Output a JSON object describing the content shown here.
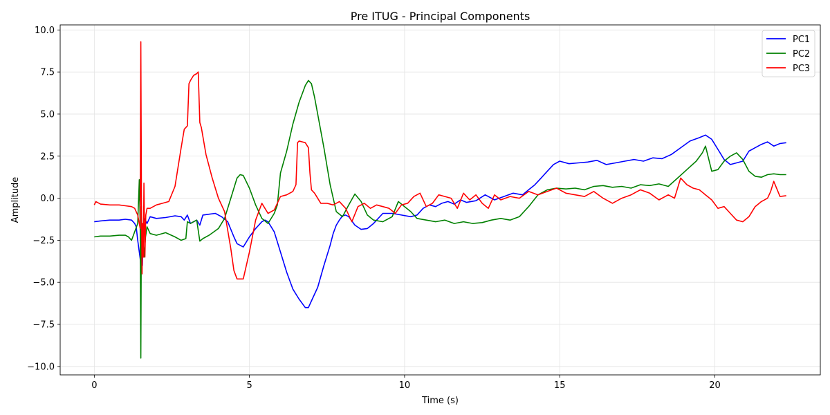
{
  "chart_data": {
    "type": "line",
    "title": "Pre ITUG - Principal Components",
    "xlabel": "Time (s)",
    "ylabel": "Amplitude",
    "xlim": [
      -1.1,
      23.4
    ],
    "ylim": [
      -10.5,
      10.3
    ],
    "xticks": [
      0,
      5,
      10,
      15,
      20
    ],
    "yticks": [
      -10.0,
      -7.5,
      -5.0,
      -2.5,
      0.0,
      2.5,
      5.0,
      7.5,
      10.0
    ],
    "xtick_labels": [
      "0",
      "5",
      "10",
      "15",
      "20"
    ],
    "ytick_labels": [
      "−10.0",
      "−7.5",
      "−5.0",
      "−2.5",
      "0.0",
      "2.5",
      "5.0",
      "7.5",
      "10.0"
    ],
    "grid": true,
    "legend_position": "top-right",
    "series": [
      {
        "name": "PC1",
        "color": "#0000ff",
        "x": [
          0,
          0.2,
          0.5,
          0.8,
          1.0,
          1.2,
          1.3,
          1.35,
          1.4,
          1.45,
          1.48,
          1.5,
          1.52,
          1.55,
          1.58,
          1.62,
          1.7,
          1.8,
          2.0,
          2.3,
          2.6,
          2.8,
          2.9,
          3.0,
          3.1,
          3.2,
          3.3,
          3.4,
          3.5,
          3.7,
          3.9,
          4.1,
          4.3,
          4.5,
          4.6,
          4.7,
          4.8,
          5.0,
          5.2,
          5.4,
          5.5,
          5.6,
          5.8,
          6.0,
          6.2,
          6.4,
          6.6,
          6.8,
          6.9,
          7.0,
          7.2,
          7.4,
          7.6,
          7.7,
          7.8,
          7.9,
          8.0,
          8.1,
          8.2,
          8.4,
          8.6,
          8.8,
          9.0,
          9.3,
          9.6,
          9.9,
          10.2,
          10.4,
          10.6,
          10.8,
          11.0,
          11.2,
          11.4,
          11.6,
          11.8,
          12.0,
          12.3,
          12.6,
          12.9,
          13.2,
          13.5,
          13.8,
          14.0,
          14.2,
          14.4,
          14.6,
          14.8,
          15.0,
          15.3,
          15.6,
          15.9,
          16.2,
          16.5,
          16.8,
          17.1,
          17.4,
          17.7,
          18.0,
          18.3,
          18.6,
          18.9,
          19.2,
          19.5,
          19.7,
          19.9,
          20.1,
          20.3,
          20.5,
          20.7,
          20.9,
          21.1,
          21.3,
          21.5,
          21.7,
          21.9,
          22.1,
          22.3
        ],
        "y": [
          -1.4,
          -1.35,
          -1.3,
          -1.3,
          -1.25,
          -1.3,
          -1.5,
          -1.7,
          -2.5,
          -3.2,
          -3.6,
          -4.2,
          -3.3,
          -4.0,
          -2.0,
          -1.2,
          -1.5,
          -1.1,
          -1.2,
          -1.15,
          -1.05,
          -1.1,
          -1.3,
          -1.0,
          -1.5,
          -1.4,
          -1.3,
          -1.6,
          -1.0,
          -0.95,
          -0.9,
          -1.1,
          -1.4,
          -2.3,
          -2.7,
          -2.8,
          -2.9,
          -2.3,
          -1.8,
          -1.4,
          -1.3,
          -1.4,
          -2.0,
          -3.2,
          -4.4,
          -5.4,
          -6.0,
          -6.5,
          -6.5,
          -6.1,
          -5.3,
          -4.0,
          -2.8,
          -2.1,
          -1.6,
          -1.3,
          -1.05,
          -1.0,
          -1.1,
          -1.6,
          -1.85,
          -1.8,
          -1.5,
          -0.9,
          -0.9,
          -1.0,
          -1.1,
          -1.0,
          -0.6,
          -0.4,
          -0.5,
          -0.3,
          -0.2,
          -0.35,
          -0.1,
          -0.25,
          -0.15,
          0.2,
          -0.1,
          0.1,
          0.3,
          0.2,
          0.5,
          0.8,
          1.2,
          1.6,
          2.0,
          2.2,
          2.05,
          2.1,
          2.15,
          2.25,
          2.0,
          2.1,
          2.2,
          2.3,
          2.2,
          2.4,
          2.35,
          2.6,
          3.0,
          3.4,
          3.6,
          3.75,
          3.5,
          2.9,
          2.3,
          2.0,
          2.1,
          2.2,
          2.8,
          3.0,
          3.2,
          3.35,
          3.1,
          3.25,
          3.3
        ]
      },
      {
        "name": "PC2",
        "color": "#008000",
        "x": [
          0,
          0.2,
          0.5,
          0.8,
          1.0,
          1.1,
          1.2,
          1.3,
          1.4,
          1.45,
          1.48,
          1.5,
          1.52,
          1.54,
          1.56,
          1.6,
          1.65,
          1.7,
          1.8,
          2.0,
          2.3,
          2.6,
          2.8,
          2.95,
          3.0,
          3.1,
          3.3,
          3.4,
          3.5,
          3.7,
          4.0,
          4.2,
          4.4,
          4.6,
          4.7,
          4.8,
          5.0,
          5.2,
          5.4,
          5.6,
          5.8,
          5.9,
          6.0,
          6.2,
          6.4,
          6.6,
          6.8,
          6.9,
          7.0,
          7.1,
          7.2,
          7.4,
          7.6,
          7.8,
          8.0,
          8.2,
          8.4,
          8.6,
          8.8,
          9.0,
          9.3,
          9.6,
          9.8,
          10.0,
          10.2,
          10.4,
          10.7,
          11.0,
          11.3,
          11.6,
          11.9,
          12.2,
          12.5,
          12.8,
          13.1,
          13.4,
          13.7,
          14.0,
          14.3,
          14.6,
          14.9,
          15.2,
          15.5,
          15.8,
          16.1,
          16.4,
          16.7,
          17.0,
          17.3,
          17.6,
          17.9,
          18.2,
          18.5,
          18.8,
          19.1,
          19.4,
          19.6,
          19.7,
          19.9,
          20.1,
          20.3,
          20.5,
          20.7,
          20.9,
          21.1,
          21.3,
          21.5,
          21.7,
          21.9,
          22.1,
          22.3
        ],
        "y": [
          -2.3,
          -2.25,
          -2.25,
          -2.2,
          -2.2,
          -2.3,
          -2.5,
          -2.0,
          -1.5,
          1.1,
          -1.7,
          -9.5,
          -0.5,
          -2.8,
          -1.9,
          -3.5,
          -2.3,
          -1.7,
          -2.1,
          -2.2,
          -2.05,
          -2.3,
          -2.5,
          -2.4,
          -1.4,
          -1.5,
          -1.3,
          -2.55,
          -2.4,
          -2.2,
          -1.8,
          -1.2,
          0.0,
          1.2,
          1.4,
          1.35,
          0.6,
          -0.4,
          -1.2,
          -1.5,
          -0.9,
          -0.4,
          1.5,
          2.8,
          4.4,
          5.7,
          6.7,
          7.0,
          6.8,
          6.0,
          5.0,
          3.0,
          0.8,
          -0.8,
          -1.1,
          -0.4,
          0.25,
          -0.2,
          -1.0,
          -1.3,
          -1.4,
          -1.1,
          -0.2,
          -0.5,
          -0.8,
          -1.2,
          -1.3,
          -1.4,
          -1.3,
          -1.5,
          -1.4,
          -1.5,
          -1.45,
          -1.3,
          -1.2,
          -1.3,
          -1.1,
          -0.5,
          0.2,
          0.5,
          0.6,
          0.55,
          0.6,
          0.5,
          0.7,
          0.75,
          0.65,
          0.7,
          0.6,
          0.8,
          0.75,
          0.85,
          0.7,
          1.2,
          1.7,
          2.2,
          2.7,
          3.1,
          1.6,
          1.7,
          2.2,
          2.5,
          2.7,
          2.3,
          1.6,
          1.3,
          1.25,
          1.4,
          1.45,
          1.4,
          1.4
        ]
      },
      {
        "name": "PC3",
        "color": "#ff0000",
        "x": [
          0,
          0.05,
          0.2,
          0.5,
          0.8,
          1.0,
          1.2,
          1.3,
          1.4,
          1.45,
          1.48,
          1.5,
          1.52,
          1.54,
          1.56,
          1.58,
          1.6,
          1.63,
          1.66,
          1.7,
          1.8,
          2.0,
          2.2,
          2.4,
          2.6,
          2.8,
          2.9,
          3.0,
          3.05,
          3.1,
          3.2,
          3.3,
          3.35,
          3.4,
          3.45,
          3.6,
          3.8,
          4.0,
          4.2,
          4.4,
          4.5,
          4.6,
          4.8,
          5.0,
          5.2,
          5.4,
          5.6,
          5.8,
          6.0,
          6.2,
          6.4,
          6.5,
          6.55,
          6.6,
          6.8,
          6.9,
          6.95,
          7.0,
          7.1,
          7.3,
          7.5,
          7.7,
          7.9,
          8.1,
          8.3,
          8.5,
          8.7,
          8.9,
          9.1,
          9.3,
          9.5,
          9.7,
          9.9,
          10.1,
          10.3,
          10.5,
          10.7,
          10.9,
          11.1,
          11.3,
          11.5,
          11.7,
          11.9,
          12.1,
          12.3,
          12.5,
          12.7,
          12.9,
          13.1,
          13.4,
          13.7,
          14.0,
          14.3,
          14.6,
          14.9,
          15.2,
          15.5,
          15.8,
          16.1,
          16.4,
          16.7,
          17.0,
          17.3,
          17.6,
          17.9,
          18.2,
          18.5,
          18.7,
          18.9,
          19.1,
          19.3,
          19.5,
          19.7,
          19.9,
          20.1,
          20.3,
          20.5,
          20.7,
          20.9,
          21.1,
          21.3,
          21.5,
          21.7,
          21.8,
          21.9,
          22.1,
          22.3
        ],
        "y": [
          -0.4,
          -0.2,
          -0.35,
          -0.4,
          -0.4,
          -0.45,
          -0.5,
          -0.6,
          -1.0,
          -1.5,
          -1.8,
          9.3,
          0.0,
          -4.5,
          -1.5,
          -3.5,
          0.9,
          -3.5,
          -1.0,
          -0.6,
          -0.6,
          -0.4,
          -0.3,
          -0.2,
          0.7,
          3.0,
          4.1,
          4.3,
          6.8,
          7.0,
          7.3,
          7.4,
          7.5,
          4.5,
          4.2,
          2.6,
          1.2,
          0.0,
          -0.8,
          -3.0,
          -4.3,
          -4.8,
          -4.8,
          -3.2,
          -1.3,
          -0.3,
          -0.9,
          -0.7,
          0.1,
          0.2,
          0.4,
          0.8,
          3.3,
          3.4,
          3.3,
          3.0,
          1.5,
          0.5,
          0.3,
          -0.3,
          -0.3,
          -0.4,
          -0.2,
          -0.6,
          -1.4,
          -0.5,
          -0.3,
          -0.6,
          -0.4,
          -0.5,
          -0.6,
          -0.9,
          -0.4,
          -0.3,
          0.1,
          0.3,
          -0.5,
          -0.3,
          0.2,
          0.1,
          0.0,
          -0.6,
          0.3,
          -0.1,
          0.2,
          -0.3,
          -0.6,
          0.2,
          -0.1,
          0.1,
          0.0,
          0.4,
          0.2,
          0.4,
          0.6,
          0.3,
          0.2,
          0.1,
          0.4,
          0.0,
          -0.3,
          0.0,
          0.2,
          0.5,
          0.3,
          -0.1,
          0.2,
          0.0,
          1.2,
          0.8,
          0.6,
          0.5,
          0.2,
          -0.1,
          -0.6,
          -0.5,
          -0.9,
          -1.3,
          -1.4,
          -1.1,
          -0.5,
          -0.2,
          0.0,
          0.4,
          1.0,
          0.1,
          0.15
        ]
      }
    ]
  }
}
